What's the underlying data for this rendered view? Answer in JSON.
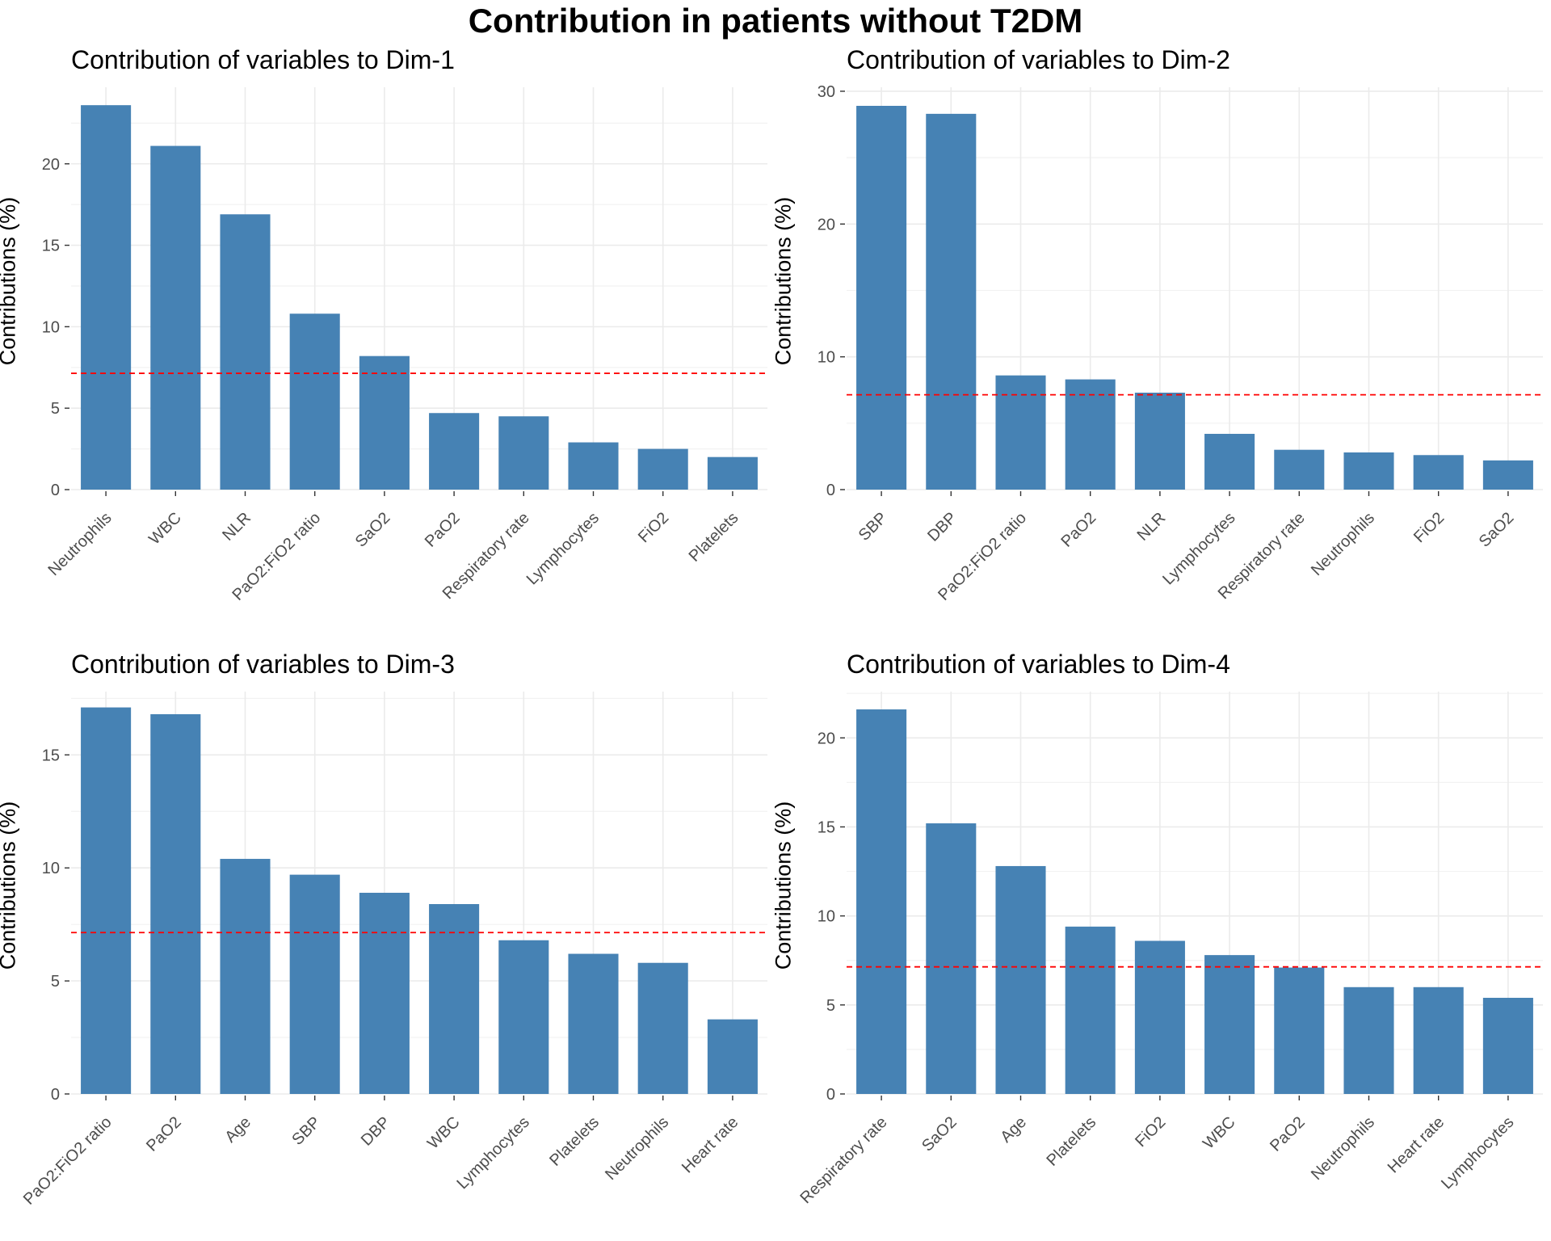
{
  "title": "Contribution in patients without T2DM",
  "colors": {
    "bar": "#4682b4",
    "reference": "#ff0000",
    "grid": "#ebebeb"
  },
  "chart_data": [
    {
      "type": "bar",
      "title": "Contribution of variables to Dim-1",
      "xlabel": "",
      "ylabel": "Contributions (%)",
      "categories": [
        "Neutrophils",
        "WBC",
        "NLR",
        "PaO2:FiO2 ratio",
        "SaO2",
        "PaO2",
        "Respiratory rate",
        "Lymphocytes",
        "FiO2",
        "Platelets"
      ],
      "values": [
        23.6,
        21.1,
        16.9,
        10.8,
        8.2,
        4.7,
        4.5,
        2.9,
        2.5,
        2.0
      ],
      "reference_line": 7.14,
      "yticks": [
        0,
        5,
        10,
        15,
        20
      ],
      "ylim": [
        0,
        24.7
      ],
      "grid": true
    },
    {
      "type": "bar",
      "title": "Contribution of variables to Dim-2",
      "xlabel": "",
      "ylabel": "Contributions (%)",
      "categories": [
        "SBP",
        "DBP",
        "PaO2:FiO2 ratio",
        "PaO2",
        "NLR",
        "Lymphocytes",
        "Respiratory rate",
        "Neutrophils",
        "FiO2",
        "SaO2"
      ],
      "values": [
        28.9,
        28.3,
        8.6,
        8.3,
        7.3,
        4.2,
        3.0,
        2.8,
        2.6,
        2.2
      ],
      "reference_line": 7.14,
      "yticks": [
        0,
        10,
        20,
        30
      ],
      "ylim": [
        0,
        30.3
      ],
      "grid": true
    },
    {
      "type": "bar",
      "title": "Contribution of variables to Dim-3",
      "xlabel": "",
      "ylabel": "Contributions (%)",
      "categories": [
        "PaO2:FiO2 ratio",
        "PaO2",
        "Age",
        "SBP",
        "DBP",
        "WBC",
        "Lymphocytes",
        "Platelets",
        "Neutrophils",
        "Heart rate"
      ],
      "values": [
        17.1,
        16.8,
        10.4,
        9.7,
        8.9,
        8.4,
        6.8,
        6.2,
        5.8,
        3.3
      ],
      "reference_line": 7.14,
      "yticks": [
        0,
        5,
        10,
        15
      ],
      "ylim": [
        0,
        17.8
      ],
      "grid": true
    },
    {
      "type": "bar",
      "title": "Contribution of variables to Dim-4",
      "xlabel": "",
      "ylabel": "Contributions (%)",
      "categories": [
        "Respiratory rate",
        "SaO2",
        "Age",
        "Platelets",
        "FiO2",
        "WBC",
        "PaO2",
        "Neutrophils",
        "Heart rate",
        "Lymphocytes"
      ],
      "values": [
        21.6,
        15.2,
        12.8,
        9.4,
        8.6,
        7.8,
        7.1,
        6.0,
        6.0,
        5.4
      ],
      "reference_line": 7.14,
      "yticks": [
        0,
        5,
        10,
        15,
        20
      ],
      "ylim": [
        0,
        22.6
      ],
      "grid": true
    }
  ]
}
